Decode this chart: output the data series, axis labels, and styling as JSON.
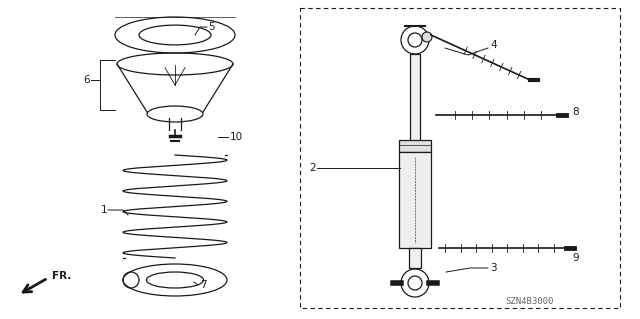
{
  "bg_color": "#ffffff",
  "line_color": "#1a1a1a",
  "catalog_code": "SZN4B3000",
  "fig_width": 6.4,
  "fig_height": 3.19,
  "dpi": 100
}
